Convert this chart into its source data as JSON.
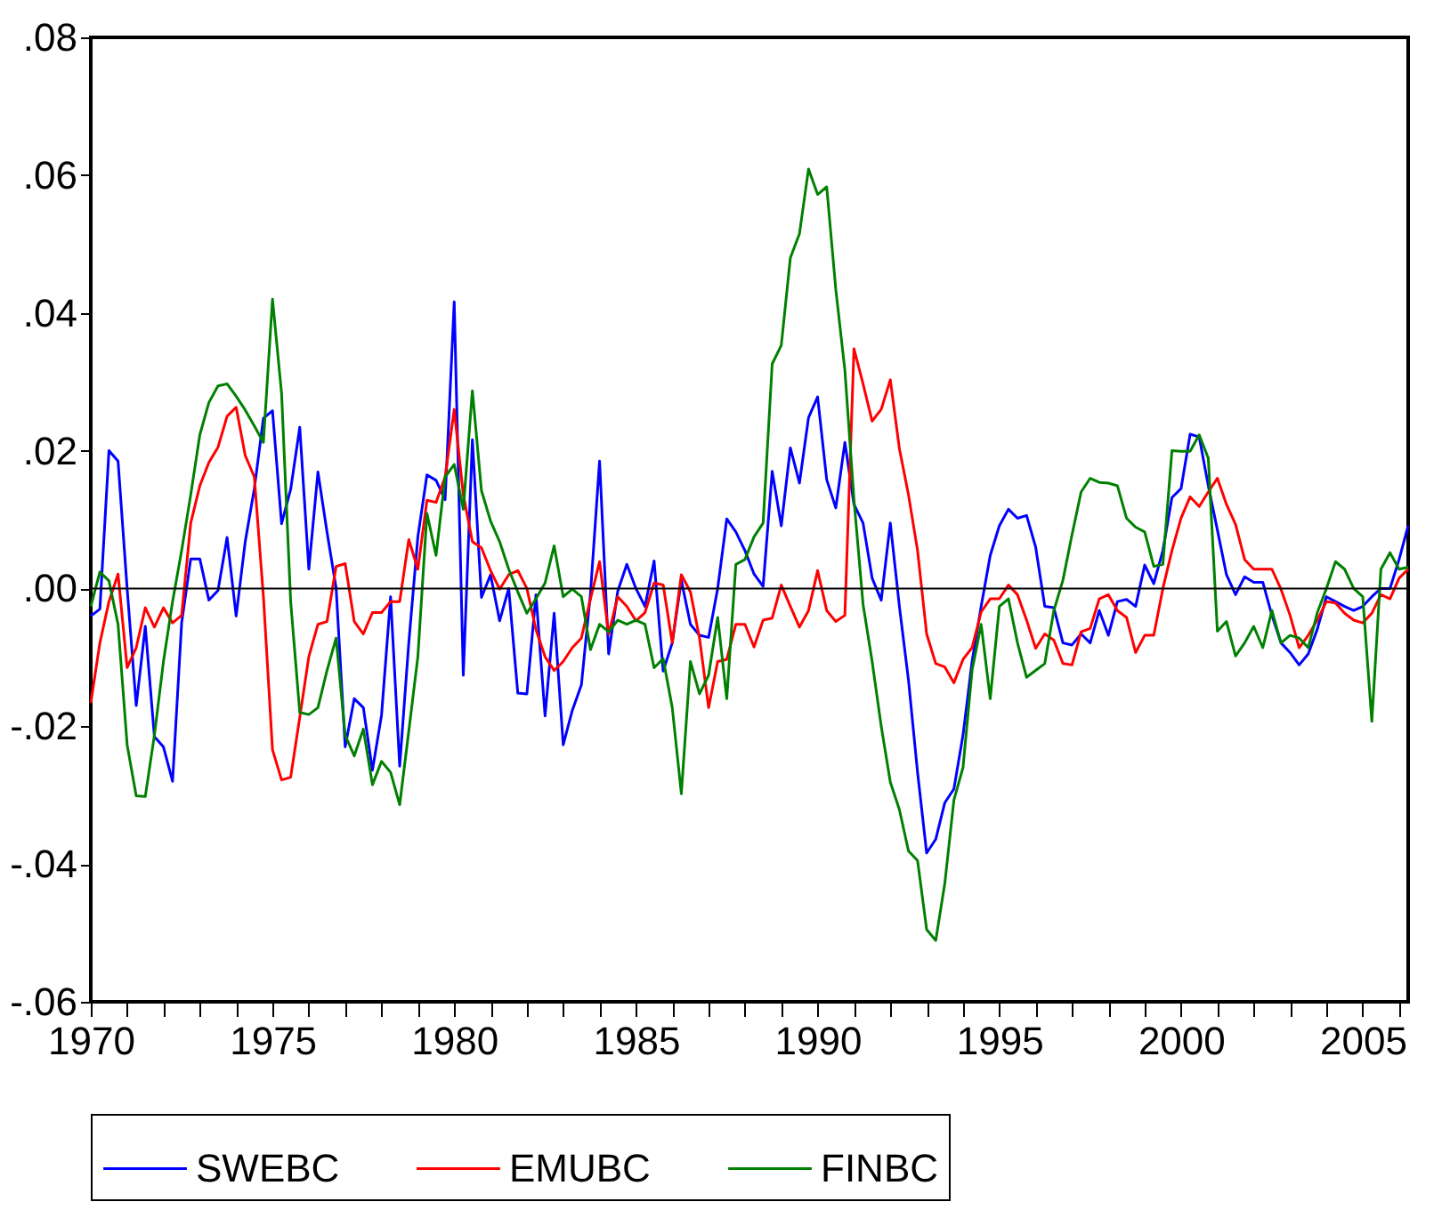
{
  "chart_data": {
    "type": "line",
    "x": [
      1970,
      1970.25,
      1970.5,
      1970.75,
      1971,
      1971.25,
      1971.5,
      1971.75,
      1972,
      1972.25,
      1972.5,
      1972.75,
      1973,
      1973.25,
      1973.5,
      1973.75,
      1974,
      1974.25,
      1974.5,
      1974.75,
      1975,
      1975.25,
      1975.5,
      1975.75,
      1976,
      1976.25,
      1976.5,
      1976.75,
      1977,
      1977.25,
      1977.5,
      1977.75,
      1978,
      1978.25,
      1978.5,
      1978.75,
      1979,
      1979.25,
      1979.5,
      1979.75,
      1980,
      1980.25,
      1980.5,
      1980.75,
      1981,
      1981.25,
      1981.5,
      1981.75,
      1982,
      1982.25,
      1982.5,
      1982.75,
      1983,
      1983.25,
      1983.5,
      1983.75,
      1984,
      1984.25,
      1984.5,
      1984.75,
      1985,
      1985.25,
      1985.5,
      1985.75,
      1986,
      1986.25,
      1986.5,
      1986.75,
      1987,
      1987.25,
      1987.5,
      1987.75,
      1988,
      1988.25,
      1988.5,
      1988.75,
      1989,
      1989.25,
      1989.5,
      1989.75,
      1990,
      1990.25,
      1990.5,
      1990.75,
      1991,
      1991.25,
      1991.5,
      1991.75,
      1992,
      1992.25,
      1992.5,
      1992.75,
      1993,
      1993.25,
      1993.5,
      1993.75,
      1994,
      1994.25,
      1994.5,
      1994.75,
      1995,
      1995.25,
      1995.5,
      1995.75,
      1996,
      1996.25,
      1996.5,
      1996.75,
      1997,
      1997.25,
      1997.5,
      1997.75,
      1998,
      1998.25,
      1998.5,
      1998.75,
      1999,
      1999.25,
      1999.5,
      1999.75,
      2000,
      2000.25,
      2000.5,
      2000.75,
      2001,
      2001.25,
      2001.5,
      2001.75,
      2002,
      2002.25,
      2002.5,
      2002.75,
      2003,
      2003.25,
      2003.5,
      2003.75,
      2004,
      2004.25,
      2004.5,
      2004.75,
      2005,
      2005.25,
      2005.5,
      2005.75,
      2006,
      2006.25
    ],
    "series": [
      {
        "name": "SWEBC",
        "color": "#0000ff",
        "values": [
          -0.004,
          -0.003,
          0.02,
          0.0185,
          0.0,
          -0.017,
          -0.0055,
          -0.0215,
          -0.023,
          -0.028,
          -0.005,
          0.0043,
          0.0043,
          -0.0017,
          -0.0003,
          0.0074,
          -0.004,
          0.0068,
          0.0145,
          0.0247,
          0.0258,
          0.0094,
          0.0144,
          0.0234,
          0.0028,
          0.0169,
          0.0082,
          0.0001,
          -0.023,
          -0.016,
          -0.0173,
          -0.0264,
          -0.0184,
          -0.0012,
          -0.0258,
          -0.0079,
          0.0075,
          0.0165,
          0.0157,
          0.0129,
          0.0416,
          -0.0126,
          0.0216,
          -0.0013,
          0.002,
          -0.0047,
          0.0,
          -0.0152,
          -0.0153,
          -0.0009,
          -0.0185,
          -0.0036,
          -0.0227,
          -0.0177,
          -0.014,
          -0.0007,
          0.0185,
          -0.0095,
          -0.0004,
          0.0035,
          0.0,
          -0.0026,
          0.004,
          -0.012,
          -0.0079,
          0.0012,
          -0.0052,
          -0.0068,
          -0.0071,
          0.0,
          0.0101,
          0.0082,
          0.0055,
          0.0021,
          0.0003,
          0.017,
          0.0091,
          0.0204,
          0.0153,
          0.0248,
          0.0278,
          0.0158,
          0.0117,
          0.0212,
          0.0122,
          0.0095,
          0.0015,
          -0.0017,
          0.0095,
          -0.0026,
          -0.0133,
          -0.0267,
          -0.0384,
          -0.0364,
          -0.0311,
          -0.0291,
          -0.0213,
          -0.0106,
          -0.0026,
          0.0048,
          0.0091,
          0.0115,
          0.0102,
          0.0106,
          0.006,
          -0.0026,
          -0.0028,
          -0.0079,
          -0.0082,
          -0.0066,
          -0.0079,
          -0.0032,
          -0.0068,
          -0.0019,
          -0.0016,
          -0.0026,
          0.0034,
          0.0007,
          0.0055,
          0.0132,
          0.0145,
          0.0224,
          0.022,
          0.0149,
          0.0085,
          0.002,
          -0.0009,
          0.0017,
          0.0009,
          0.0009,
          -0.0039,
          -0.0079,
          -0.0093,
          -0.0111,
          -0.0095,
          -0.0059,
          -0.0012,
          -0.0019,
          -0.0026,
          -0.0032,
          -0.0026,
          -0.0012,
          0.0,
          0.0,
          0.0042,
          0.0091
        ]
      },
      {
        "name": "EMUBC",
        "color": "#ff0000",
        "values": [
          -0.0166,
          -0.0079,
          -0.0019,
          0.0021,
          -0.0115,
          -0.0086,
          -0.0028,
          -0.0056,
          -0.0028,
          -0.005,
          -0.0039,
          0.0095,
          0.0149,
          0.0183,
          0.0205,
          0.025,
          0.0263,
          0.0193,
          0.0162,
          -0.0012,
          -0.0234,
          -0.0278,
          -0.0274,
          -0.0187,
          -0.0099,
          -0.0052,
          -0.0048,
          0.0032,
          0.0036,
          -0.0048,
          -0.0066,
          -0.0035,
          -0.0035,
          -0.0019,
          -0.0019,
          0.0071,
          0.0028,
          0.0128,
          0.0125,
          0.0162,
          0.026,
          0.0136,
          0.0068,
          0.0059,
          0.0026,
          -0.0001,
          0.002,
          0.0026,
          0.0,
          -0.006,
          -0.0099,
          -0.0119,
          -0.0106,
          -0.0086,
          -0.0072,
          -0.0015,
          0.0039,
          -0.0066,
          -0.0012,
          -0.0026,
          -0.0047,
          -0.0035,
          0.0008,
          0.0005,
          -0.0079,
          0.002,
          -0.0005,
          -0.0072,
          -0.0173,
          -0.0106,
          -0.0103,
          -0.0052,
          -0.0052,
          -0.0085,
          -0.0046,
          -0.0043,
          0.0005,
          -0.0026,
          -0.0056,
          -0.0032,
          0.0026,
          -0.0032,
          -0.0048,
          -0.0039,
          0.0348,
          0.0297,
          0.0243,
          0.026,
          0.0303,
          0.0203,
          0.0136,
          0.0055,
          -0.0066,
          -0.0109,
          -0.0114,
          -0.0137,
          -0.0103,
          -0.0086,
          -0.0034,
          -0.0015,
          -0.0015,
          0.0005,
          -0.0009,
          -0.0046,
          -0.0087,
          -0.0066,
          -0.0075,
          -0.0109,
          -0.0111,
          -0.0063,
          -0.0058,
          -0.0015,
          -0.0009,
          -0.0032,
          -0.0042,
          -0.0093,
          -0.0068,
          -0.0068,
          0.0,
          0.0055,
          0.0102,
          0.0133,
          0.0119,
          0.014,
          0.016,
          0.0122,
          0.0093,
          0.0042,
          0.0028,
          0.0028,
          0.0028,
          -0.0001,
          -0.0039,
          -0.0086,
          -0.0068,
          -0.0046,
          -0.0019,
          -0.0021,
          -0.0036,
          -0.0046,
          -0.005,
          -0.0036,
          -0.0009,
          -0.0015,
          0.0015,
          0.0028
        ]
      },
      {
        "name": "FINBC",
        "color": "#008000",
        "values": [
          -0.0026,
          0.0024,
          0.0011,
          -0.0052,
          -0.0227,
          -0.0301,
          -0.0302,
          -0.0213,
          -0.0106,
          -0.0019,
          0.0055,
          0.0136,
          0.0223,
          0.027,
          0.0294,
          0.0297,
          0.0279,
          0.0259,
          0.0236,
          0.0212,
          0.042,
          0.0283,
          -0.0019,
          -0.018,
          -0.0183,
          -0.0173,
          -0.0119,
          -0.0072,
          -0.0213,
          -0.0243,
          -0.0204,
          -0.0285,
          -0.0251,
          -0.0267,
          -0.0314,
          -0.0207,
          -0.0099,
          0.0109,
          0.0048,
          0.0162,
          0.018,
          0.0115,
          0.0287,
          0.0142,
          0.0098,
          0.0068,
          0.0028,
          -0.0005,
          -0.0036,
          -0.0015,
          0.0008,
          0.0062,
          -0.0012,
          -0.0001,
          -0.0012,
          -0.0089,
          -0.0052,
          -0.0063,
          -0.0046,
          -0.0052,
          -0.0046,
          -0.0052,
          -0.0115,
          -0.0102,
          -0.0173,
          -0.0298,
          -0.0106,
          -0.0153,
          -0.0126,
          -0.0042,
          -0.016,
          0.0035,
          0.0042,
          0.0075,
          0.0095,
          0.0326,
          0.0353,
          0.048,
          0.0515,
          0.0609,
          0.0572,
          0.0583,
          0.0434,
          0.0317,
          0.0129,
          -0.0023,
          -0.0106,
          -0.02,
          -0.0281,
          -0.0321,
          -0.0381,
          -0.0395,
          -0.0495,
          -0.0511,
          -0.0428,
          -0.0307,
          -0.026,
          -0.0119,
          -0.0052,
          -0.016,
          -0.0026,
          -0.0015,
          -0.0079,
          -0.0129,
          -0.0119,
          -0.0109,
          -0.0032,
          0.0012,
          0.0078,
          0.014,
          0.016,
          0.0154,
          0.0153,
          0.0149,
          0.0102,
          0.0089,
          0.0082,
          0.0032,
          0.0035,
          0.02,
          0.0199,
          0.0199,
          0.0223,
          0.0189,
          -0.0062,
          -0.0048,
          -0.0098,
          -0.0079,
          -0.0055,
          -0.0086,
          -0.0032,
          -0.0079,
          -0.0068,
          -0.0072,
          -0.0086,
          -0.0035,
          0.0,
          0.0039,
          0.0028,
          0.0,
          -0.0012,
          -0.0193,
          0.0028,
          0.0052,
          0.0028,
          0.0031
        ]
      }
    ],
    "xlim": [
      1970,
      2006.25
    ],
    "xticks": [
      1970,
      {
        "value": 1971,
        "label": null
      },
      {
        "value": 1972,
        "label": null
      },
      {
        "value": 1973,
        "label": null
      },
      {
        "value": 1974,
        "label": null
      },
      1975,
      {
        "value": 1976,
        "label": null
      },
      {
        "value": 1977,
        "label": null
      },
      {
        "value": 1978,
        "label": null
      },
      {
        "value": 1979,
        "label": null
      },
      1980,
      {
        "value": 1981,
        "label": null
      },
      {
        "value": 1982,
        "label": null
      },
      {
        "value": 1983,
        "label": null
      },
      {
        "value": 1984,
        "label": null
      },
      1985,
      {
        "value": 1986,
        "label": null
      },
      {
        "value": 1987,
        "label": null
      },
      {
        "value": 1988,
        "label": null
      },
      {
        "value": 1989,
        "label": null
      },
      1990,
      {
        "value": 1991,
        "label": null
      },
      {
        "value": 1992,
        "label": null
      },
      {
        "value": 1993,
        "label": null
      },
      {
        "value": 1994,
        "label": null
      },
      1995,
      {
        "value": 1996,
        "label": null
      },
      {
        "value": 1997,
        "label": null
      },
      {
        "value": 1998,
        "label": null
      },
      {
        "value": 1999,
        "label": null
      },
      2000,
      {
        "value": 2001,
        "label": null
      },
      {
        "value": 2002,
        "label": null
      },
      {
        "value": 2003,
        "label": null
      },
      {
        "value": 2004,
        "label": null
      },
      2005,
      {
        "value": 2006,
        "label": null
      }
    ],
    "ylim": [
      -0.06,
      0.08
    ],
    "yticks": [
      {
        "value": -0.06,
        "label": "-.06"
      },
      {
        "value": -0.04,
        "label": "-.04"
      },
      {
        "value": -0.02,
        "label": "-.02"
      },
      {
        "value": 0,
        "label": ".00"
      },
      {
        "value": 0.02,
        "label": ".02"
      },
      {
        "value": 0.04,
        "label": ".04"
      },
      {
        "value": 0.06,
        "label": ".06"
      },
      {
        "value": 0.08,
        "label": ".08"
      }
    ],
    "ref_lines": [
      {
        "axis": "y",
        "value": 0,
        "color": "#000000"
      }
    ],
    "grid": false,
    "legend": "bottom",
    "line_style": "solid"
  }
}
